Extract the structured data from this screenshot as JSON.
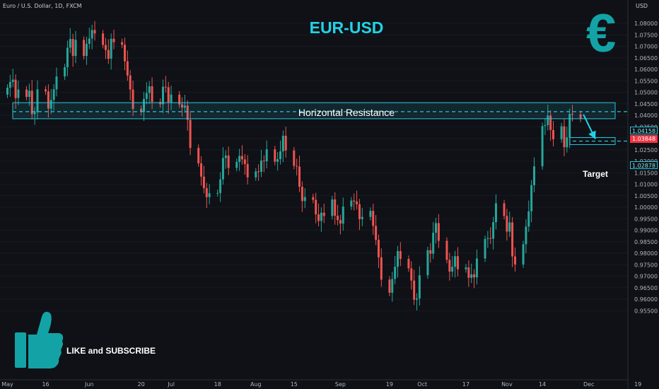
{
  "header": {
    "symbol": "Euro / U.S. Dollar, 1D, FXCM",
    "currency": "USD",
    "title": "EUR-USD",
    "euro_symbol": "€"
  },
  "annotations": {
    "resistance_label": "Horizontal Resistance",
    "target_label": "Target",
    "cta": "LIKE and SUBSCRIBE"
  },
  "price_tags": {
    "resistance": "1.04158",
    "current": "1.03848",
    "target": "1.02878"
  },
  "colors": {
    "background": "#0f1116",
    "up": "#26a69a",
    "down": "#ef5350",
    "accent": "#22d3e6",
    "zone": "#26c6da"
  },
  "chart_data": {
    "type": "candlestick",
    "title": "EUR-USD",
    "ylim": [
      0.953,
      1.083
    ],
    "y_ticks": [
      "1.08000",
      "1.07500",
      "1.07000",
      "1.06500",
      "1.06000",
      "1.05500",
      "1.05000",
      "1.04500",
      "1.04000",
      "1.03500",
      "1.03000",
      "1.02500",
      "1.02000",
      "1.01500",
      "1.01000",
      "1.00500",
      "1.00000",
      "0.99500",
      "0.99000",
      "0.98500",
      "0.98000",
      "0.97500",
      "0.97000",
      "0.96500",
      "0.96000",
      "0.95500"
    ],
    "x_ticks": [
      {
        "label": "May",
        "day": 0
      },
      {
        "label": "16",
        "day": 14
      },
      {
        "label": "Jun",
        "day": 30
      },
      {
        "label": "20",
        "day": 49
      },
      {
        "label": "Jul",
        "day": 60
      },
      {
        "label": "18",
        "day": 77
      },
      {
        "label": "Aug",
        "day": 91
      },
      {
        "label": "15",
        "day": 105
      },
      {
        "label": "Sep",
        "day": 122
      },
      {
        "label": "19",
        "day": 140
      },
      {
        "label": "Oct",
        "day": 152
      },
      {
        "label": "17",
        "day": 168
      },
      {
        "label": "Nov",
        "day": 183
      },
      {
        "label": "14",
        "day": 196
      },
      {
        "label": "Dec",
        "day": 213
      },
      {
        "label": "19",
        "day": 231
      }
    ],
    "resistance_zone": [
      1.0385,
      1.0455
    ],
    "resistance_level": 1.04158,
    "target_level": 1.02878,
    "closes": [
      1.052,
      1.0545,
      1.0555,
      1.0475,
      1.0512,
      1.048,
      1.0507,
      1.0405,
      1.0413,
      1.0513,
      1.0504,
      1.0429,
      1.0467,
      1.0513,
      1.0569,
      1.0609,
      1.0694,
      1.0732,
      1.0658,
      1.0728,
      1.0658,
      1.0711,
      1.0734,
      1.0771,
      1.0756,
      1.0706,
      1.0684,
      1.0646,
      1.0733,
      1.0718,
      1.0707,
      1.0635,
      1.0573,
      1.0512,
      1.0428,
      1.0414,
      1.0471,
      1.0497,
      1.0526,
      1.0458,
      1.0448,
      1.0524,
      1.0522,
      1.0454,
      1.049,
      1.0447,
      1.0434,
      1.0442,
      1.038,
      1.0258,
      1.0191,
      1.0133,
      1.0083,
      1.0044,
      1.0061,
      1.0062,
      1.0121,
      1.0214,
      1.0225,
      1.0171,
      1.0197,
      1.0223,
      1.0208,
      1.0188,
      1.013,
      1.0156,
      1.0154,
      1.0203,
      1.02,
      1.0252,
      1.0198,
      1.0209,
      1.0243,
      1.0311,
      1.0247,
      1.018,
      1.0177,
      1.0089,
      1.0027,
      1.0044,
      1.0032,
      0.9969,
      0.994,
      0.9976,
      0.9962,
      1.0034,
      0.9963,
      0.9944,
      0.9929,
      1.0003,
      1.0029,
      1.0025,
      1.0013,
      0.9948,
      0.9958,
      0.9984,
      0.9919,
      0.9858,
      0.9782,
      0.9685,
      0.9628,
      0.9688,
      0.9741,
      0.9809,
      0.9775,
      0.9734,
      0.9681,
      0.9598,
      0.9603,
      0.9704,
      0.9813,
      0.9798,
      0.9889,
      0.9931,
      0.9854,
      0.9771,
      0.972,
      0.9741,
      0.9787,
      0.973,
      0.9738,
      0.9693,
      0.9708,
      0.9695,
      0.9777,
      0.9862,
      0.9866,
      0.9863,
      0.9935,
      1.0017,
      0.9962,
      0.9894,
      0.9934,
      0.9786,
      0.9751,
      0.9839,
      0.9916,
      0.9982,
      1.0096,
      1.0178,
      1.0353,
      1.0357,
      1.0399,
      1.0336,
      1.0296,
      1.0352,
      1.0261,
      1.0304,
      1.0406,
      1.0404,
      1.0385
    ]
  }
}
